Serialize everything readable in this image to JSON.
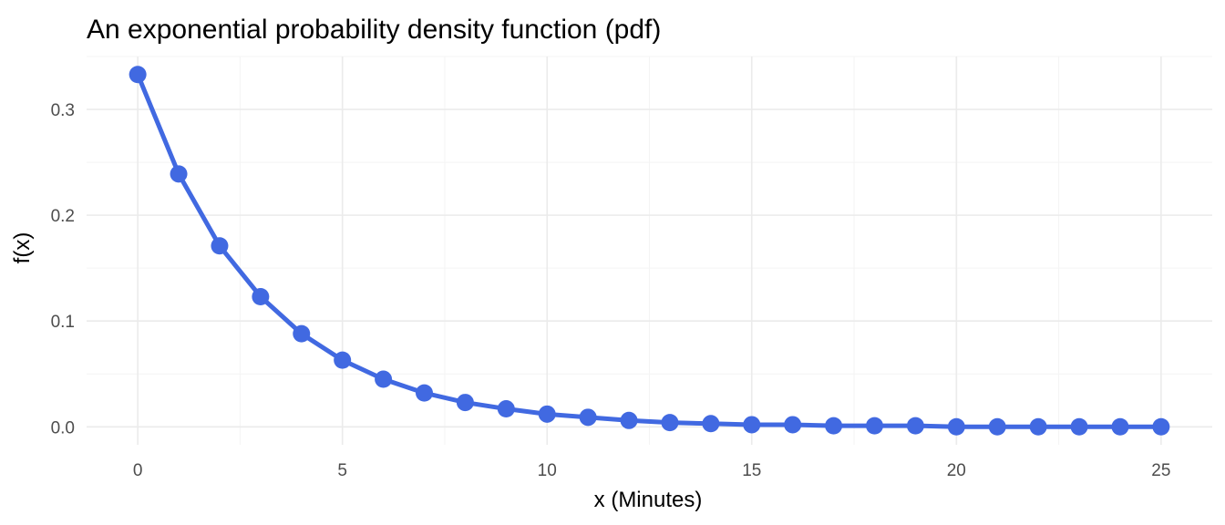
{
  "chart_data": {
    "type": "line",
    "title": "An exponential probability density function (pdf)",
    "xlabel": "x (Minutes)",
    "ylabel": "f(x)",
    "xlim": [
      -1.25,
      26.25
    ],
    "ylim": [
      -0.017,
      0.35
    ],
    "x_ticks": [
      0,
      5,
      10,
      15,
      20,
      25
    ],
    "x_tick_labels": [
      "0",
      "5",
      "10",
      "15",
      "20",
      "25"
    ],
    "y_ticks": [
      0.0,
      0.1,
      0.2,
      0.3
    ],
    "y_tick_labels": [
      "0.0",
      "0.1",
      "0.2",
      "0.3"
    ],
    "grid": true,
    "line_color": "#4169E1",
    "series": [
      {
        "x": [
          0,
          1,
          2,
          3,
          4,
          5,
          6,
          7,
          8,
          9,
          10,
          11,
          12,
          13,
          14,
          15,
          16,
          17,
          18,
          19,
          20,
          21,
          22,
          23,
          24,
          25
        ],
        "values": [
          0.333,
          0.239,
          0.171,
          0.123,
          0.088,
          0.063,
          0.045,
          0.032,
          0.023,
          0.017,
          0.012,
          0.009,
          0.006,
          0.004,
          0.003,
          0.002,
          0.002,
          0.001,
          0.001,
          0.001,
          0.0,
          0.0,
          0.0,
          0.0,
          0.0,
          0.0
        ]
      }
    ]
  }
}
